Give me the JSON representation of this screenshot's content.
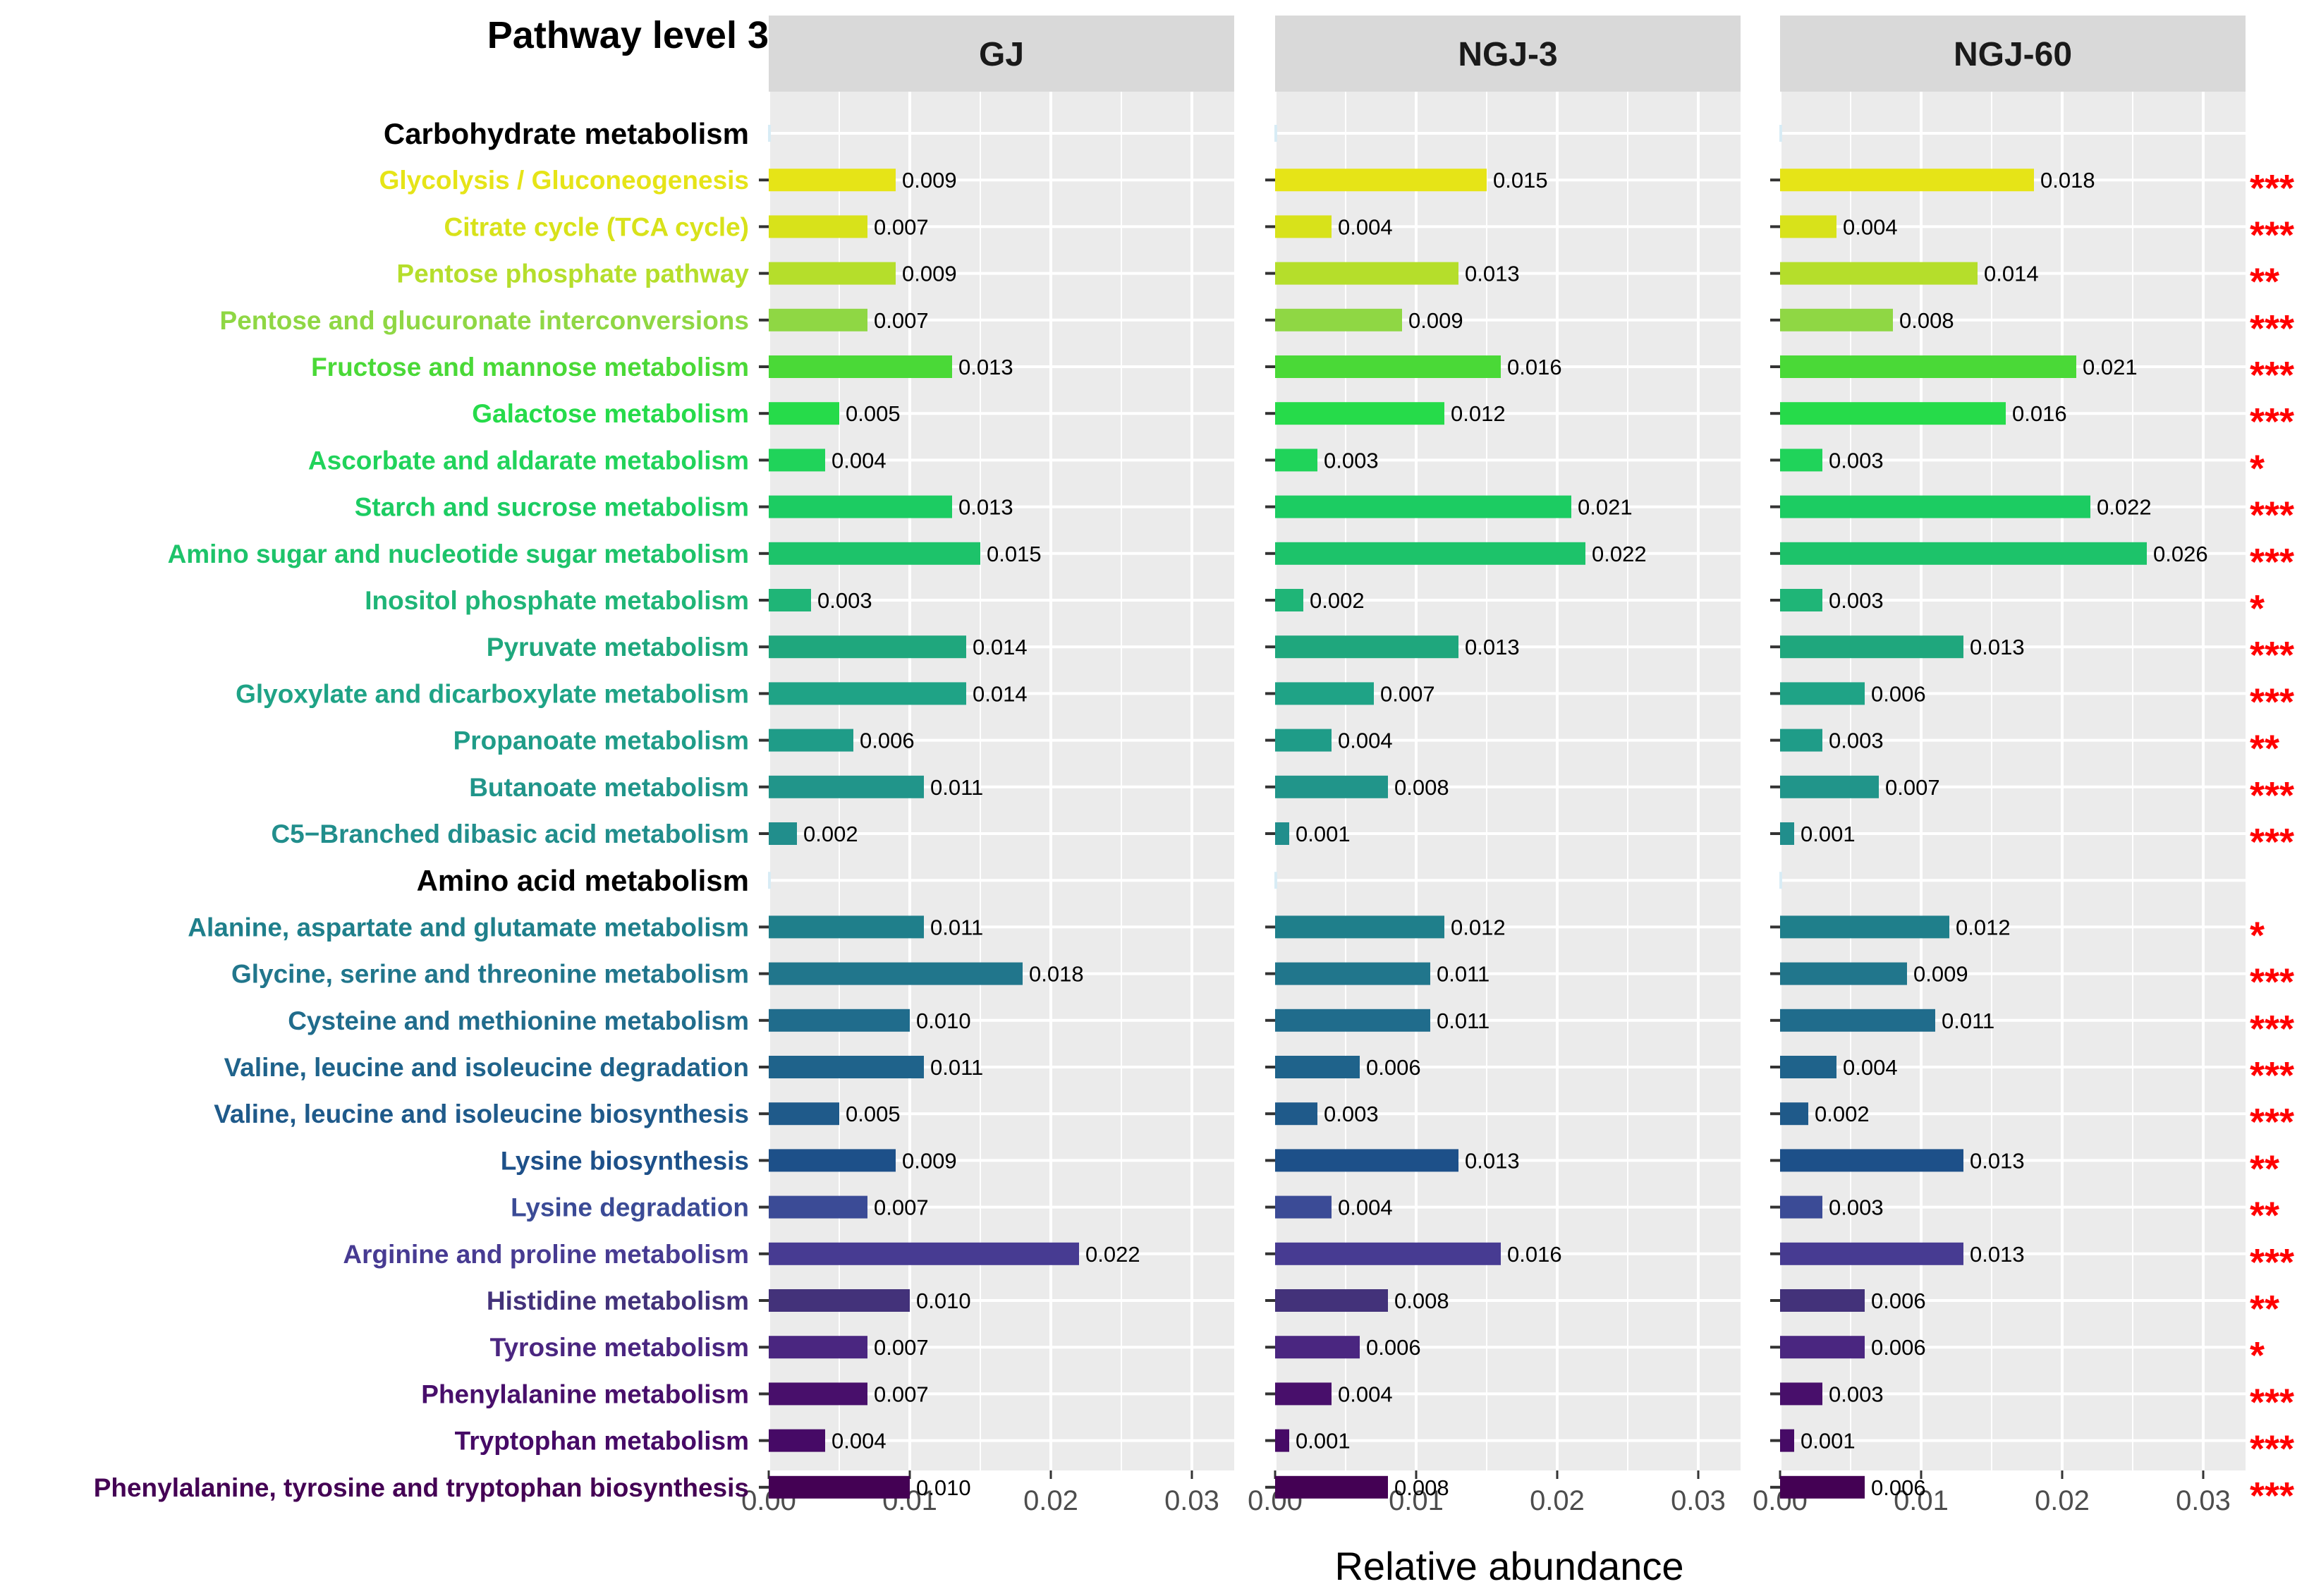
{
  "chart_data": {
    "type": "bar",
    "orientation": "horizontal",
    "title": "Pathway level 3",
    "xlabel": "Relative abundance",
    "xlim": [
      0,
      0.033
    ],
    "xticks": [
      0.0,
      0.01,
      0.02,
      0.03
    ],
    "xtick_labels": [
      "0.00",
      "0.01",
      "0.02",
      "0.03"
    ],
    "panels": [
      "GJ",
      "NGJ-3",
      "NGJ-60"
    ],
    "rows": [
      {
        "type": "header",
        "label": "Carbohydrate metabolism"
      },
      {
        "type": "item",
        "label": "Glycolysis / Gluconeogenesis",
        "color": "#e6e417",
        "values": [
          0.009,
          0.015,
          0.018
        ],
        "labels": [
          "0.009",
          "0.015",
          "0.018"
        ],
        "sig": "***"
      },
      {
        "type": "item",
        "label": "Citrate cycle (TCA cycle)",
        "color": "#d8e21a",
        "values": [
          0.007,
          0.004,
          0.004
        ],
        "labels": [
          "0.007",
          "0.004",
          "0.004"
        ],
        "sig": "***"
      },
      {
        "type": "item",
        "label": "Pentose phosphate pathway",
        "color": "#b5de2b",
        "values": [
          0.009,
          0.013,
          0.014
        ],
        "labels": [
          "0.009",
          "0.013",
          "0.014"
        ],
        "sig": "**"
      },
      {
        "type": "item",
        "label": "Pentose and glucuronate interconversions",
        "color": "#8fd744",
        "values": [
          0.007,
          0.009,
          0.008
        ],
        "labels": [
          "0.007",
          "0.009",
          "0.008"
        ],
        "sig": "***"
      },
      {
        "type": "item",
        "label": "Fructose and mannose metabolism",
        "color": "#4ad937",
        "values": [
          0.013,
          0.016,
          0.021
        ],
        "labels": [
          "0.013",
          "0.016",
          "0.021"
        ],
        "sig": "***"
      },
      {
        "type": "item",
        "label": "Galactose metabolism",
        "color": "#26db4a",
        "values": [
          0.005,
          0.012,
          0.016
        ],
        "labels": [
          "0.005",
          "0.012",
          "0.016"
        ],
        "sig": "***"
      },
      {
        "type": "item",
        "label": "Ascorbate and aldarate metabolism",
        "color": "#20d35a",
        "values": [
          0.004,
          0.003,
          0.003
        ],
        "labels": [
          "0.004",
          "0.003",
          "0.003"
        ],
        "sig": "*"
      },
      {
        "type": "item",
        "label": "Starch and sucrose metabolism",
        "color": "#1ccc62",
        "values": [
          0.013,
          0.021,
          0.022
        ],
        "labels": [
          "0.013",
          "0.021",
          "0.022"
        ],
        "sig": "***"
      },
      {
        "type": "item",
        "label": "Amino sugar and nucleotide sugar metabolism",
        "color": "#1dc36a",
        "values": [
          0.015,
          0.022,
          0.026
        ],
        "labels": [
          "0.015",
          "0.022",
          "0.026"
        ],
        "sig": "***"
      },
      {
        "type": "item",
        "label": "Inositol phosphate metabolism",
        "color": "#1fb577",
        "values": [
          0.003,
          0.002,
          0.003
        ],
        "labels": [
          "0.003",
          "0.002",
          "0.003"
        ],
        "sig": "*"
      },
      {
        "type": "item",
        "label": "Pyruvate metabolism",
        "color": "#1fa77d",
        "values": [
          0.014,
          0.013,
          0.013
        ],
        "labels": [
          "0.014",
          "0.013",
          "0.013"
        ],
        "sig": "***"
      },
      {
        "type": "item",
        "label": "Glyoxylate and dicarboxylate metabolism",
        "color": "#1fa386",
        "values": [
          0.014,
          0.007,
          0.006
        ],
        "labels": [
          "0.014",
          "0.007",
          "0.006"
        ],
        "sig": "***"
      },
      {
        "type": "item",
        "label": "Propanoate metabolism",
        "color": "#1f9c88",
        "values": [
          0.006,
          0.004,
          0.003
        ],
        "labels": [
          "0.006",
          "0.004",
          "0.003"
        ],
        "sig": "**"
      },
      {
        "type": "item",
        "label": "Butanoate metabolism",
        "color": "#21958a",
        "values": [
          0.011,
          0.008,
          0.007
        ],
        "labels": [
          "0.011",
          "0.008",
          "0.007"
        ],
        "sig": "***"
      },
      {
        "type": "item",
        "label": "C5−Branched dibasic acid metabolism",
        "color": "#218e8c",
        "values": [
          0.002,
          0.001,
          0.001
        ],
        "labels": [
          "0.002",
          "0.001",
          "0.001"
        ],
        "sig": "***"
      },
      {
        "type": "header",
        "label": "Amino acid metabolism"
      },
      {
        "type": "item",
        "label": "Alanine, aspartate and glutamate metabolism",
        "color": "#1f7f8b",
        "values": [
          0.011,
          0.012,
          0.012
        ],
        "labels": [
          "0.011",
          "0.012",
          "0.012"
        ],
        "sig": "*"
      },
      {
        "type": "item",
        "label": "Glycine, serine and threonine metabolism",
        "color": "#21768c",
        "values": [
          0.018,
          0.011,
          0.009
        ],
        "labels": [
          "0.018",
          "0.011",
          "0.009"
        ],
        "sig": "***"
      },
      {
        "type": "item",
        "label": "Cysteine and methionine metabolism",
        "color": "#206c8c",
        "values": [
          0.01,
          0.011,
          0.011
        ],
        "labels": [
          "0.010",
          "0.011",
          "0.011"
        ],
        "sig": "***"
      },
      {
        "type": "item",
        "label": "Valine, leucine and isoleucine degradation",
        "color": "#1f638b",
        "values": [
          0.011,
          0.006,
          0.004
        ],
        "labels": [
          "0.011",
          "0.006",
          "0.004"
        ],
        "sig": "***"
      },
      {
        "type": "item",
        "label": "Valine, leucine and isoleucine biosynthesis",
        "color": "#1f5a8a",
        "values": [
          0.005,
          0.003,
          0.002
        ],
        "labels": [
          "0.005",
          "0.003",
          "0.002"
        ],
        "sig": "***"
      },
      {
        "type": "item",
        "label": "Lysine biosynthesis",
        "color": "#1d5089",
        "values": [
          0.009,
          0.013,
          0.013
        ],
        "labels": [
          "0.009",
          "0.013",
          "0.013"
        ],
        "sig": "**"
      },
      {
        "type": "item",
        "label": "Lysine degradation",
        "color": "#3b4b96",
        "values": [
          0.007,
          0.004,
          0.003
        ],
        "labels": [
          "0.007",
          "0.004",
          "0.003"
        ],
        "sig": "**"
      },
      {
        "type": "item",
        "label": "Arginine and proline metabolism",
        "color": "#473b92",
        "values": [
          0.022,
          0.016,
          0.013
        ],
        "labels": [
          "0.022",
          "0.016",
          "0.013"
        ],
        "sig": "***"
      },
      {
        "type": "item",
        "label": "Histidine metabolism",
        "color": "#43327a",
        "values": [
          0.01,
          0.008,
          0.006
        ],
        "labels": [
          "0.010",
          "0.008",
          "0.006"
        ],
        "sig": "**"
      },
      {
        "type": "item",
        "label": "Tyrosine metabolism",
        "color": "#4a2680",
        "values": [
          0.007,
          0.006,
          0.006
        ],
        "labels": [
          "0.007",
          "0.006",
          "0.006"
        ],
        "sig": "*"
      },
      {
        "type": "item",
        "label": "Phenylalanine metabolism",
        "color": "#480f6b",
        "values": [
          0.007,
          0.004,
          0.003
        ],
        "labels": [
          "0.007",
          "0.004",
          "0.003"
        ],
        "sig": "***"
      },
      {
        "type": "item",
        "label": "Tryptophan metabolism",
        "color": "#460a66",
        "values": [
          0.004,
          0.001,
          0.001
        ],
        "labels": [
          "0.004",
          "0.001",
          "0.001"
        ],
        "sig": "***"
      },
      {
        "type": "item",
        "label": "Phenylalanine, tyrosine and tryptophan biosynthesis",
        "color": "#440154",
        "values": [
          0.01,
          0.008,
          0.006
        ],
        "labels": [
          "0.010",
          "0.008",
          "0.006"
        ],
        "sig": "***"
      }
    ]
  },
  "colors": {
    "panel_bg": "#ebebeb",
    "strip_bg": "#d9d9d9",
    "grid": "#ffffff",
    "significance": "#ff0000"
  }
}
